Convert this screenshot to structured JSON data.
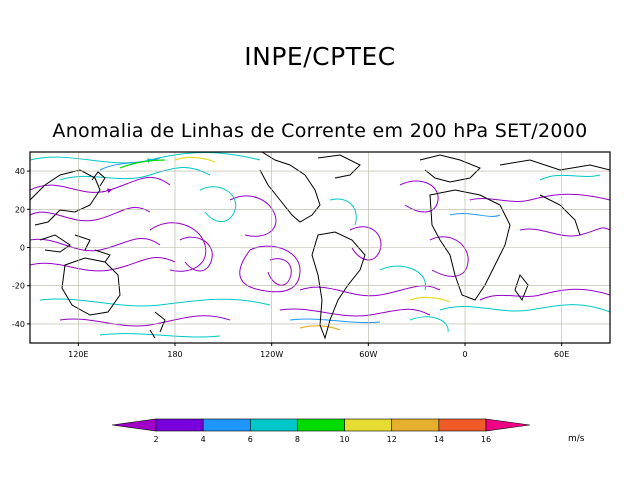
{
  "header": {
    "agency": "INPE/CPTEC",
    "title": "Anomalia de Linhas de Corrente em 200 hPa SET/2000"
  },
  "map": {
    "lon_range": [
      90,
      450
    ],
    "lat_range": [
      -50,
      50
    ],
    "lat_ticks": [
      {
        "value": 40,
        "label": "40"
      },
      {
        "value": 20,
        "label": "20"
      },
      {
        "value": 0,
        "label": "0"
      },
      {
        "value": -20,
        "label": "-20"
      },
      {
        "value": -40,
        "label": "-40"
      }
    ],
    "lon_ticks": [
      {
        "value": 120,
        "label": "120E"
      },
      {
        "value": 180,
        "label": "180"
      },
      {
        "value": 240,
        "label": "120W"
      },
      {
        "value": 300,
        "label": "60W"
      },
      {
        "value": 360,
        "label": "0"
      },
      {
        "value": 420,
        "label": "60E"
      }
    ],
    "grid": true
  },
  "colorbar": {
    "labels": [
      "2",
      "4",
      "6",
      "8",
      "10",
      "12",
      "14",
      "16"
    ],
    "colors": [
      "#a000c8",
      "#7800dc",
      "#1e96ff",
      "#00c8c8",
      "#00dc00",
      "#e6dc32",
      "#e6af2d",
      "#f05a28",
      "#f00082"
    ],
    "units": "m/s"
  },
  "colors": {
    "land": "#000000",
    "grid": "#b4b4a0",
    "stream_purple": "#9600c8",
    "stream_cyan": "#00c8c8",
    "stream_blue": "#1e96ff"
  }
}
